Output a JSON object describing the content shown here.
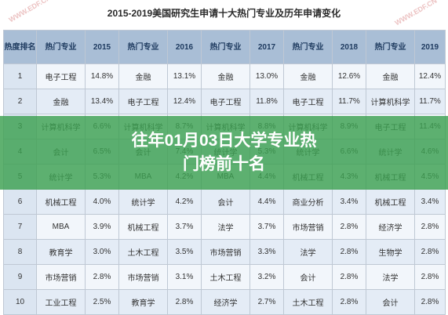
{
  "title": "2015-2019美国研究生申请十大热门专业及历年申请变化",
  "watermark": "WWW.EDF.CN",
  "banner": "往年01月03日大学专业热门榜前十名",
  "headers": [
    "热度排名",
    "热门专业",
    "2015",
    "热门专业",
    "2016",
    "热门专业",
    "2017",
    "热门专业",
    "2018",
    "热门专业",
    "2019"
  ],
  "rows": [
    [
      "1",
      "电子工程",
      "14.8%",
      "金融",
      "13.1%",
      "金融",
      "13.0%",
      "金融",
      "12.6%",
      "金融",
      "12.4%"
    ],
    [
      "2",
      "金融",
      "13.4%",
      "电子工程",
      "12.4%",
      "电子工程",
      "11.8%",
      "电子工程",
      "11.7%",
      "计算机科学",
      "11.7%"
    ],
    [
      "3",
      "计算机科学",
      "6.6%",
      "计算机科学",
      "8.7%",
      "计算机科学",
      "8.8%",
      "计算机科学",
      "8.9%",
      "电子工程",
      "11.4%"
    ],
    [
      "4",
      "会计",
      "6.5%",
      "会计",
      "7.4%",
      "统计学",
      "5.3%",
      "统计学",
      "6.6%",
      "统计学",
      "4.6%"
    ],
    [
      "5",
      "统计学",
      "5.3%",
      "MBA",
      "4.2%",
      "MBA",
      "4.4%",
      "机械工程",
      "4.3%",
      "机械工程",
      "4.5%"
    ],
    [
      "6",
      "机械工程",
      "4.0%",
      "统计学",
      "4.2%",
      "会计",
      "4.4%",
      "商业分析",
      "3.4%",
      "机械工程",
      "3.4%"
    ],
    [
      "7",
      "MBA",
      "3.9%",
      "机械工程",
      "3.7%",
      "法学",
      "3.7%",
      "市场营销",
      "2.8%",
      "经济学",
      "2.8%"
    ],
    [
      "8",
      "教育学",
      "3.0%",
      "土木工程",
      "3.5%",
      "市场营销",
      "3.3%",
      "法学",
      "2.8%",
      "生物学",
      "2.8%"
    ],
    [
      "9",
      "市场营销",
      "2.8%",
      "市场营销",
      "3.1%",
      "土木工程",
      "3.2%",
      "会计",
      "2.8%",
      "法学",
      "2.8%"
    ],
    [
      "10",
      "工业工程",
      "2.5%",
      "教育学",
      "2.8%",
      "经济学",
      "2.7%",
      "土木工程",
      "2.8%",
      "会计",
      "2.8%"
    ]
  ]
}
